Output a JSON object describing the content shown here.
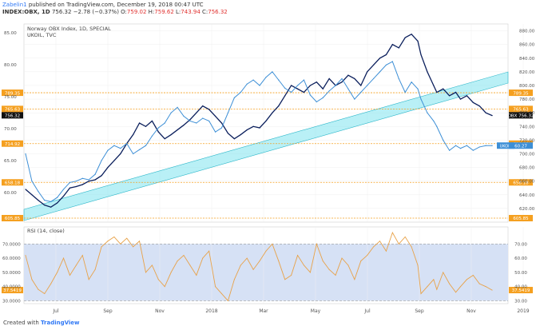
{
  "header": {
    "line1_user": "Zabelin1",
    "line1_rest": " published on TradingView.com, December 19, 2018 00:47 UTC",
    "symbol": "INDEX:OBX, 1D",
    "price": "756.32",
    "change": "−2.78 (−0.37%)",
    "o_label": "O:",
    "o": "759.02",
    "h_label": "H:",
    "h": "759.62",
    "l_label": "L:",
    "l": "743.94",
    "c_label": "C:",
    "c": "756.32"
  },
  "footer": {
    "created_with": "Created with",
    "brand": "TradingView"
  },
  "chart_data": [
    {
      "type": "line",
      "title": "Norway OBX Index, 1D, SPECIAL",
      "subtitle": "UKOIL, TVC",
      "x_labels": [
        "Jul",
        "Sep",
        "Nov",
        "2018",
        "Mar",
        "May",
        "Jul",
        "Sep",
        "Nov",
        "2019"
      ],
      "y_left_ticks": [
        60,
        65,
        70,
        75,
        80,
        85
      ],
      "y_right_ticks": [
        620,
        640,
        660,
        680,
        700,
        720,
        740,
        760,
        780,
        800,
        820,
        840,
        860,
        880
      ],
      "ylim": [
        600,
        890
      ],
      "series": [
        {
          "name": "OBX",
          "color": "#0b1f5c",
          "x": [
            0,
            8,
            16,
            24,
            32,
            40,
            48,
            56,
            64,
            72,
            80,
            88,
            96,
            104,
            112,
            120,
            128,
            136,
            144,
            152,
            160,
            168,
            176,
            184,
            192,
            200,
            208,
            216,
            224,
            232,
            240,
            248,
            256,
            264,
            272,
            280,
            288,
            296,
            304,
            312,
            320,
            328,
            336,
            344,
            352,
            360,
            368,
            376,
            384,
            392,
            400,
            408,
            416,
            424,
            432,
            440,
            448,
            456,
            464,
            472,
            480,
            488,
            496,
            500,
            508,
            516,
            520,
            528,
            536,
            544,
            550,
            558,
            566,
            574,
            582,
            590
          ],
          "values": [
            648,
            640,
            632,
            625,
            622,
            628,
            638,
            650,
            652,
            655,
            660,
            662,
            668,
            680,
            690,
            700,
            715,
            728,
            745,
            740,
            748,
            732,
            722,
            728,
            735,
            742,
            750,
            760,
            770,
            765,
            755,
            745,
            730,
            722,
            728,
            735,
            740,
            738,
            748,
            760,
            770,
            785,
            800,
            795,
            790,
            800,
            805,
            795,
            810,
            800,
            805,
            815,
            810,
            800,
            820,
            830,
            840,
            845,
            860,
            855,
            870,
            875,
            865,
            845,
            820,
            800,
            790,
            795,
            785,
            790,
            780,
            785,
            775,
            770,
            760,
            756
          ]
        },
        {
          "name": "UKOIL",
          "color": "#3d8fd6",
          "x": [
            0,
            8,
            16,
            24,
            32,
            40,
            48,
            56,
            64,
            72,
            80,
            88,
            96,
            104,
            112,
            120,
            128,
            136,
            144,
            152,
            160,
            168,
            176,
            184,
            192,
            200,
            208,
            216,
            224,
            232,
            240,
            248,
            256,
            264,
            272,
            280,
            288,
            296,
            304,
            312,
            320,
            328,
            336,
            344,
            352,
            360,
            368,
            376,
            384,
            392,
            400,
            408,
            416,
            424,
            432,
            440,
            448,
            456,
            464,
            472,
            480,
            488,
            496,
            500,
            508,
            516,
            520,
            528,
            536,
            544,
            550,
            558,
            566,
            574,
            582,
            590
          ],
          "values": [
            700,
            660,
            645,
            632,
            630,
            636,
            648,
            658,
            660,
            664,
            662,
            670,
            690,
            705,
            712,
            708,
            715,
            700,
            706,
            712,
            726,
            738,
            745,
            760,
            768,
            755,
            748,
            745,
            752,
            748,
            732,
            738,
            760,
            782,
            790,
            802,
            808,
            800,
            812,
            820,
            808,
            796,
            790,
            800,
            808,
            786,
            776,
            782,
            792,
            800,
            810,
            795,
            780,
            790,
            800,
            810,
            820,
            830,
            835,
            810,
            790,
            805,
            795,
            780,
            760,
            748,
            740,
            720,
            705,
            712,
            708,
            712,
            705,
            710,
            712,
            712
          ]
        }
      ],
      "hlines": [
        {
          "label": "789.35",
          "value": 789.35
        },
        {
          "label": "765.63",
          "value": 765.63
        },
        {
          "label": "714.92",
          "value": 714.92
        },
        {
          "label": "658.18",
          "value": 658.18
        },
        {
          "label": "605.85",
          "value": 605.85
        }
      ],
      "price_labels": [
        {
          "label": "OBX",
          "value": "756.32"
        },
        {
          "label": "UKOIL",
          "value": "60.27"
        }
      ],
      "left_price_labels": [
        "789.35",
        "756.32",
        "765.63",
        "60.27",
        "714.92",
        "658.18",
        "605.85"
      ]
    },
    {
      "type": "line",
      "title": "RSI (14, close)",
      "y_left_ticks": [
        "70.0000",
        "60.0000",
        "50.0000",
        "40.0000",
        "30.0000"
      ],
      "y_right_ticks": [
        30,
        40,
        50,
        60,
        70
      ],
      "ylim": [
        28,
        82
      ],
      "band": [
        30,
        70
      ],
      "last_label": "37.5419",
      "series": [
        {
          "name": "RSI",
          "color": "#e8a249",
          "x": [
            0,
            8,
            16,
            24,
            32,
            40,
            48,
            56,
            64,
            72,
            80,
            88,
            96,
            104,
            112,
            120,
            128,
            136,
            144,
            152,
            160,
            168,
            176,
            184,
            192,
            200,
            208,
            216,
            224,
            232,
            240,
            248,
            256,
            264,
            272,
            280,
            288,
            296,
            304,
            312,
            320,
            328,
            336,
            344,
            352,
            360,
            368,
            376,
            384,
            392,
            400,
            408,
            416,
            424,
            432,
            440,
            448,
            456,
            464,
            472,
            480,
            488,
            496,
            500,
            508,
            516,
            520,
            528,
            536,
            544,
            550,
            558,
            566,
            574,
            582,
            590
          ],
          "values": [
            62,
            45,
            38,
            35,
            42,
            50,
            60,
            48,
            55,
            62,
            45,
            52,
            68,
            72,
            75,
            70,
            74,
            68,
            72,
            50,
            55,
            45,
            40,
            50,
            58,
            62,
            55,
            48,
            60,
            65,
            40,
            35,
            30,
            45,
            55,
            60,
            52,
            58,
            65,
            70,
            58,
            45,
            48,
            62,
            55,
            50,
            70,
            58,
            52,
            48,
            60,
            55,
            45,
            58,
            62,
            68,
            72,
            65,
            78,
            70,
            75,
            68,
            55,
            35,
            40,
            45,
            38,
            50,
            42,
            36,
            40,
            45,
            48,
            42,
            40,
            37.5
          ]
        }
      ]
    }
  ]
}
